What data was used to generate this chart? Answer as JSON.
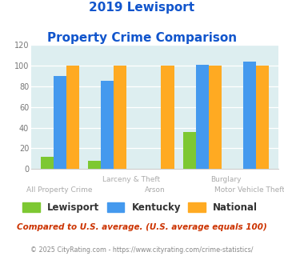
{
  "title_line1": "2019 Lewisport",
  "title_line2": "Property Crime Comparison",
  "categories": [
    "All Property Crime",
    "Larceny & Theft",
    "Arson",
    "Burglary",
    "Motor Vehicle Theft"
  ],
  "lewisport": [
    12,
    8,
    0,
    36,
    0
  ],
  "kentucky": [
    90,
    85,
    0,
    101,
    104
  ],
  "national": [
    100,
    100,
    100,
    100,
    100
  ],
  "lewisport_color": "#7dc832",
  "kentucky_color": "#4499ee",
  "national_color": "#ffaa22",
  "bg_color": "#ddeef0",
  "ylim": [
    0,
    120
  ],
  "yticks": [
    0,
    20,
    40,
    60,
    80,
    100,
    120
  ],
  "legend_labels": [
    "Lewisport",
    "Kentucky",
    "National"
  ],
  "footnote1": "Compared to U.S. average. (U.S. average equals 100)",
  "footnote2": "© 2025 CityRating.com - https://www.cityrating.com/crime-statistics/",
  "title_color": "#1155cc",
  "label_color": "#aaaaaa",
  "footnote1_color": "#cc3300",
  "footnote2_color": "#888888",
  "xlabel_row1_pos": [
    1.5,
    3.5
  ],
  "xlabel_row1_text": [
    "Larceny & Theft",
    "Burglary"
  ],
  "xlabel_row2_pos": [
    0,
    2,
    4
  ],
  "xlabel_row2_text": [
    "All Property Crime",
    "Arson",
    "Motor Vehicle Theft"
  ]
}
